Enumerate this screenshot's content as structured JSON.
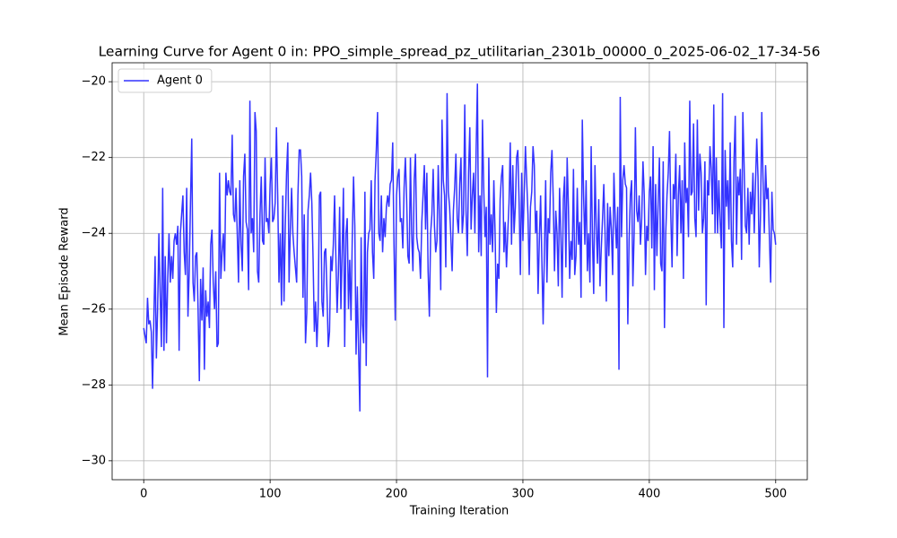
{
  "chart_data": {
    "type": "line",
    "title": "Learning Curve for Agent 0 in: PPO_simple_spread_pz_utilitarian_2301b_00000_0_2025-06-02_17-34-56",
    "x_label": "Training Iteration",
    "y_label": "Mean Episode Reward",
    "xlim": [
      -25,
      525
    ],
    "ylim": [
      -30.5,
      -19.5
    ],
    "xticks": [
      0,
      100,
      200,
      300,
      400,
      500
    ],
    "yticks": [
      {
        "value": -30,
        "label": "−30"
      },
      {
        "value": -28,
        "label": "−28"
      },
      {
        "value": -26,
        "label": "−26"
      },
      {
        "value": -24,
        "label": "−24"
      },
      {
        "value": -22,
        "label": "−22"
      },
      {
        "value": -20,
        "label": "−20"
      }
    ],
    "grid": true,
    "legend": "upper left",
    "x": [
      0,
      1,
      2,
      3,
      4,
      5,
      6,
      7,
      8,
      9,
      10,
      11,
      12,
      13,
      14,
      15,
      16,
      17,
      18,
      19,
      20,
      21,
      22,
      23,
      24,
      25,
      26,
      27,
      28,
      29,
      30,
      31,
      32,
      33,
      34,
      35,
      36,
      37,
      38,
      39,
      40,
      41,
      42,
      43,
      44,
      45,
      46,
      47,
      48,
      49,
      50,
      51,
      52,
      53,
      54,
      55,
      56,
      57,
      58,
      59,
      60,
      61,
      62,
      63,
      64,
      65,
      66,
      67,
      68,
      69,
      70,
      71,
      72,
      73,
      74,
      75,
      76,
      77,
      78,
      79,
      80,
      81,
      82,
      83,
      84,
      85,
      86,
      87,
      88,
      89,
      90,
      91,
      92,
      93,
      94,
      95,
      96,
      97,
      98,
      99,
      100,
      101,
      102,
      103,
      104,
      105,
      106,
      107,
      108,
      109,
      110,
      111,
      112,
      113,
      114,
      115,
      116,
      117,
      118,
      119,
      120,
      121,
      122,
      123,
      124,
      125,
      126,
      127,
      128,
      129,
      130,
      131,
      132,
      133,
      134,
      135,
      136,
      137,
      138,
      139,
      140,
      141,
      142,
      143,
      144,
      145,
      146,
      147,
      148,
      149,
      150,
      151,
      152,
      153,
      154,
      155,
      156,
      157,
      158,
      159,
      160,
      161,
      162,
      163,
      164,
      165,
      166,
      167,
      168,
      169,
      170,
      171,
      172,
      173,
      174,
      175,
      176,
      177,
      178,
      179,
      180,
      181,
      182,
      183,
      184,
      185,
      186,
      187,
      188,
      189,
      190,
      191,
      192,
      193,
      194,
      195,
      196,
      197,
      198,
      199,
      200,
      201,
      202,
      203,
      204,
      205,
      206,
      207,
      208,
      209,
      210,
      211,
      212,
      213,
      214,
      215,
      216,
      217,
      218,
      219,
      220,
      221,
      222,
      223,
      224,
      225,
      226,
      227,
      228,
      229,
      230,
      231,
      232,
      233,
      234,
      235,
      236,
      237,
      238,
      239,
      240,
      241,
      242,
      243,
      244,
      245,
      246,
      247,
      248,
      249,
      250,
      251,
      252,
      253,
      254,
      255,
      256,
      257,
      258,
      259,
      260,
      261,
      262,
      263,
      264,
      265,
      266,
      267,
      268,
      269,
      270,
      271,
      272,
      273,
      274,
      275,
      276,
      277,
      278,
      279,
      280,
      281,
      282,
      283,
      284,
      285,
      286,
      287,
      288,
      289,
      290,
      291,
      292,
      293,
      294,
      295,
      296,
      297,
      298,
      299,
      300,
      301,
      302,
      303,
      304,
      305,
      306,
      307,
      308,
      309,
      310,
      311,
      312,
      313,
      314,
      315,
      316,
      317,
      318,
      319,
      320,
      321,
      322,
      323,
      324,
      325,
      326,
      327,
      328,
      329,
      330,
      331,
      332,
      333,
      334,
      335,
      336,
      337,
      338,
      339,
      340,
      341,
      342,
      343,
      344,
      345,
      346,
      347,
      348,
      349,
      350,
      351,
      352,
      353,
      354,
      355,
      356,
      357,
      358,
      359,
      360,
      361,
      362,
      363,
      364,
      365,
      366,
      367,
      368,
      369,
      370,
      371,
      372,
      373,
      374,
      375,
      376,
      377,
      378,
      379,
      380,
      381,
      382,
      383,
      384,
      385,
      386,
      387,
      388,
      389,
      390,
      391,
      392,
      393,
      394,
      395,
      396,
      397,
      398,
      399,
      400,
      401,
      402,
      403,
      404,
      405,
      406,
      407,
      408,
      409,
      410,
      411,
      412,
      413,
      414,
      415,
      416,
      417,
      418,
      419,
      420,
      421,
      422,
      423,
      424,
      425,
      426,
      427,
      428,
      429,
      430,
      431,
      432,
      433,
      434,
      435,
      436,
      437,
      438,
      439,
      440,
      441,
      442,
      443,
      444,
      445,
      446,
      447,
      448,
      449,
      450,
      451,
      452,
      453,
      454,
      455,
      456,
      457,
      458,
      459,
      460,
      461,
      462,
      463,
      464,
      465,
      466,
      467,
      468,
      469,
      470,
      471,
      472,
      473,
      474,
      475,
      476,
      477,
      478,
      479,
      480,
      481,
      482,
      483,
      484,
      485,
      486,
      487,
      488,
      489,
      490,
      491,
      492,
      493,
      494,
      495,
      496,
      497,
      498,
      499,
      500
    ],
    "series": [
      {
        "name": "Agent 0",
        "color": "#3333ff",
        "values": [
          -26.5,
          -26.7,
          -26.9,
          -25.7,
          -26.4,
          -26.3,
          -26.6,
          -28.1,
          -26.3,
          -24.6,
          -27.3,
          -26.0,
          -24.0,
          -25.6,
          -27.0,
          -22.8,
          -27.1,
          -24.6,
          -26.9,
          -25.2,
          -24.0,
          -25.3,
          -24.6,
          -25.2,
          -24.2,
          -24.0,
          -24.3,
          -23.8,
          -27.1,
          -24.0,
          -23.5,
          -23.0,
          -24.5,
          -25.1,
          -22.8,
          -26.2,
          -25.0,
          -23.2,
          -21.5,
          -25.3,
          -25.8,
          -24.6,
          -24.5,
          -26.0,
          -27.9,
          -25.2,
          -26.3,
          -24.9,
          -27.6,
          -25.5,
          -26.2,
          -25.8,
          -26.5,
          -24.3,
          -23.9,
          -25.3,
          -26.0,
          -25.0,
          -27.0,
          -26.9,
          -22.4,
          -25.2,
          -24.5,
          -24.0,
          -25.0,
          -22.4,
          -23.0,
          -22.6,
          -22.9,
          -23.0,
          -21.4,
          -23.5,
          -23.7,
          -22.8,
          -24.0,
          -25.3,
          -22.6,
          -24.3,
          -25.0,
          -22.5,
          -21.9,
          -23.7,
          -23.9,
          -25.5,
          -20.5,
          -24.0,
          -23.6,
          -24.5,
          -20.8,
          -21.3,
          -25.0,
          -25.3,
          -23.5,
          -22.5,
          -24.2,
          -24.3,
          -22.0,
          -23.7,
          -23.6,
          -24.0,
          -22.7,
          -22.0,
          -23.7,
          -23.6,
          -23.2,
          -21.2,
          -23.0,
          -25.3,
          -24.0,
          -25.9,
          -23.0,
          -25.8,
          -23.8,
          -22.4,
          -21.6,
          -25.3,
          -23.9,
          -22.8,
          -24.0,
          -24.5,
          -24.9,
          -25.3,
          -23.0,
          -21.8,
          -21.8,
          -22.5,
          -25.7,
          -23.5,
          -26.9,
          -26.1,
          -23.4,
          -23.0,
          -22.4,
          -23.2,
          -24.7,
          -26.6,
          -25.8,
          -27.0,
          -26.0,
          -23.0,
          -22.9,
          -25.8,
          -26.2,
          -24.5,
          -24.4,
          -25.6,
          -27.0,
          -26.6,
          -24.6,
          -25.0,
          -24.3,
          -23.0,
          -24.6,
          -26.1,
          -25.1,
          -23.3,
          -26.0,
          -24.5,
          -22.8,
          -27.0,
          -24.0,
          -23.6,
          -26.0,
          -24.7,
          -26.3,
          -24.1,
          -22.5,
          -23.8,
          -27.2,
          -25.4,
          -27.1,
          -28.7,
          -24.1,
          -26.4,
          -26.9,
          -22.9,
          -27.5,
          -24.5,
          -24.0,
          -23.9,
          -22.6,
          -24.5,
          -25.2,
          -22.6,
          -21.8,
          -20.8,
          -24.0,
          -24.2,
          -23.0,
          -24.5,
          -23.6,
          -24.1,
          -23.3,
          -23.0,
          -23.3,
          -22.7,
          -22.6,
          -21.6,
          -24.3,
          -26.3,
          -23.0,
          -22.5,
          -22.3,
          -23.7,
          -23.6,
          -24.4,
          -22.8,
          -22.0,
          -23.1,
          -24.6,
          -24.8,
          -22.0,
          -24.0,
          -25.0,
          -22.6,
          -21.9,
          -24.1,
          -24.4,
          -24.5,
          -25.2,
          -23.7,
          -23.0,
          -22.2,
          -23.9,
          -22.4,
          -25.0,
          -26.2,
          -24.0,
          -23.5,
          -22.3,
          -23.8,
          -24.5,
          -24.2,
          -22.2,
          -23.6,
          -25.5,
          -21.0,
          -22.6,
          -23.0,
          -24.9,
          -20.3,
          -22.9,
          -23.3,
          -24.1,
          -25.0,
          -23.4,
          -22.8,
          -21.9,
          -23.6,
          -24.0,
          -22.7,
          -22.0,
          -24.0,
          -23.5,
          -20.6,
          -23.4,
          -24.6,
          -22.4,
          -21.2,
          -23.9,
          -23.0,
          -22.4,
          -24.0,
          -21.8,
          -20.05,
          -24.5,
          -23.0,
          -24.6,
          -21.0,
          -22.8,
          -24.1,
          -23.3,
          -27.8,
          -22.0,
          -24.3,
          -23.5,
          -24.5,
          -22.6,
          -24.0,
          -26.1,
          -24.8,
          -25.2,
          -23.1,
          -22.5,
          -22.2,
          -24.5,
          -23.7,
          -24.9,
          -24.0,
          -23.2,
          -21.6,
          -24.3,
          -22.2,
          -24.0,
          -23.3,
          -22.0,
          -21.8,
          -23.2,
          -25.1,
          -22.4,
          -24.2,
          -23.0,
          -21.7,
          -22.6,
          -23.5,
          -25.1,
          -23.3,
          -22.9,
          -21.7,
          -22.2,
          -24.0,
          -23.4,
          -25.6,
          -24.2,
          -23.0,
          -24.7,
          -26.4,
          -24.5,
          -22.6,
          -25.3,
          -23.6,
          -24.0,
          -22.4,
          -21.8,
          -23.1,
          -25.0,
          -23.4,
          -24.0,
          -25.4,
          -22.8,
          -24.0,
          -25.7,
          -23.1,
          -22.5,
          -24.9,
          -22.0,
          -23.3,
          -25.2,
          -24.2,
          -24.7,
          -22.3,
          -25.1,
          -24.6,
          -22.8,
          -24.3,
          -23.7,
          -25.7,
          -21.0,
          -23.0,
          -24.3,
          -22.6,
          -25.0,
          -24.0,
          -25.3,
          -21.7,
          -24.1,
          -25.6,
          -22.2,
          -23.8,
          -24.8,
          -23.1,
          -25.4,
          -24.4,
          -23.6,
          -22.7,
          -24.0,
          -25.8,
          -23.2,
          -24.6,
          -23.3,
          -23.9,
          -25.1,
          -22.4,
          -23.6,
          -24.4,
          -23.3,
          -27.6,
          -20.4,
          -24.1,
          -22.6,
          -22.2,
          -22.7,
          -22.8,
          -26.4,
          -24.2,
          -23.0,
          -22.6,
          -25.4,
          -24.0,
          -21.2,
          -23.4,
          -23.7,
          -23.0,
          -24.3,
          -23.6,
          -22.1,
          -23.0,
          -25.1,
          -23.8,
          -24.2,
          -22.9,
          -22.5,
          -24.4,
          -21.7,
          -25.5,
          -22.7,
          -24.6,
          -23.2,
          -22.0,
          -24.8,
          -25.0,
          -22.1,
          -26.5,
          -24.0,
          -23.0,
          -22.4,
          -21.3,
          -23.5,
          -24.9,
          -22.7,
          -23.1,
          -21.9,
          -24.6,
          -23.0,
          -22.2,
          -24.0,
          -22.6,
          -25.2,
          -21.6,
          -23.2,
          -22.8,
          -24.1,
          -20.5,
          -23.0,
          -22.9,
          -21.1,
          -23.6,
          -24.1,
          -21.0,
          -23.4,
          -21.9,
          -22.4,
          -24.0,
          -23.6,
          -22.1,
          -25.9,
          -22.6,
          -23.0,
          -21.7,
          -22.3,
          -23.5,
          -20.6,
          -24.0,
          -22.0,
          -24.0,
          -22.6,
          -23.7,
          -24.4,
          -20.3,
          -26.5,
          -21.8,
          -23.3,
          -22.6,
          -23.9,
          -21.6,
          -24.2,
          -24.9,
          -22.1,
          -20.9,
          -24.3,
          -22.5,
          -23.0,
          -22.3,
          -24.7,
          -20.8,
          -22.2,
          -23.8,
          -24.0,
          -22.8,
          -24.3,
          -22.9,
          -23.5,
          -22.4,
          -24.0,
          -22.7,
          -21.5,
          -22.5,
          -24.9,
          -23.5,
          -20.8,
          -22.6,
          -24.0,
          -22.2,
          -23.1,
          -22.8,
          -24.1,
          -25.3,
          -22.9,
          -23.9,
          -24.0,
          -24.3
        ]
      }
    ]
  }
}
